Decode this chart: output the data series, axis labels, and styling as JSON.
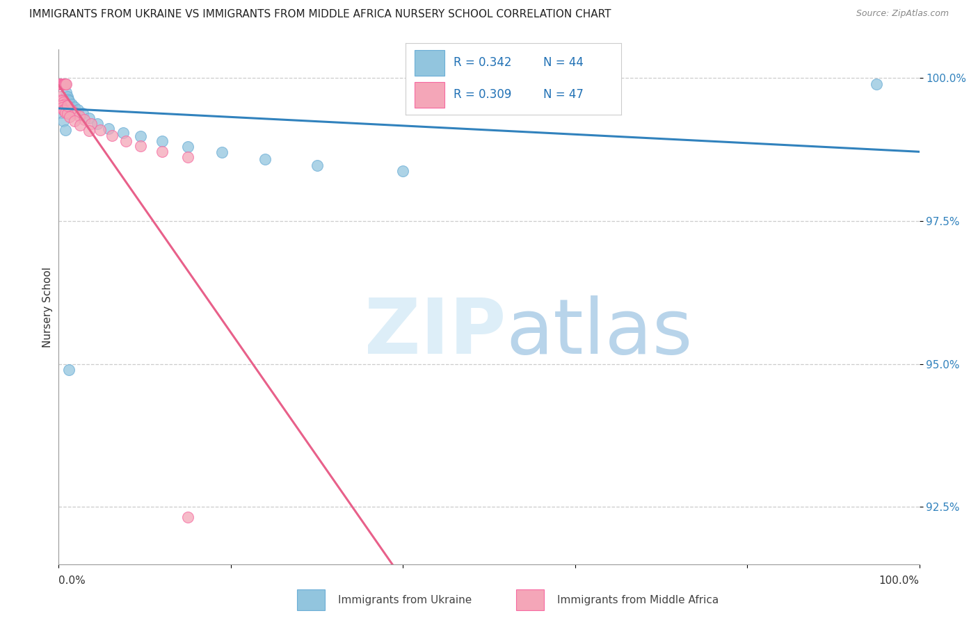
{
  "title": "IMMIGRANTS FROM UKRAINE VS IMMIGRANTS FROM MIDDLE AFRICA NURSERY SCHOOL CORRELATION CHART",
  "source": "Source: ZipAtlas.com",
  "ylabel": "Nursery School",
  "yticks": [
    0.925,
    0.95,
    0.975,
    1.0
  ],
  "ytick_labels": [
    "92.5%",
    "95.0%",
    "97.5%",
    "100.0%"
  ],
  "xlim": [
    0.0,
    1.0
  ],
  "ylim": [
    0.915,
    1.005
  ],
  "blue_color": "#92c5de",
  "blue_edge_color": "#6baed6",
  "blue_line_color": "#3182bd",
  "pink_color": "#f4a6b8",
  "pink_edge_color": "#f768a1",
  "pink_line_color": "#e8608a",
  "legend_R_blue": "R = 0.342",
  "legend_N_blue": "N = 44",
  "legend_R_pink": "R = 0.309",
  "legend_N_pink": "N = 47",
  "legend_label_blue": "Immigrants from Ukraine",
  "legend_label_pink": "Immigrants from Middle Africa",
  "title_fontsize": 11,
  "source_fontsize": 9,
  "tick_fontsize": 11,
  "blue_x": [
    0.001,
    0.002,
    0.002,
    0.002,
    0.003,
    0.003,
    0.003,
    0.003,
    0.004,
    0.004,
    0.004,
    0.005,
    0.005,
    0.005,
    0.006,
    0.006,
    0.006,
    0.007,
    0.007,
    0.008,
    0.009,
    0.01,
    0.011,
    0.012,
    0.015,
    0.018,
    0.022,
    0.028,
    0.035,
    0.045,
    0.058,
    0.075,
    0.095,
    0.12,
    0.15,
    0.19,
    0.24,
    0.3,
    0.4,
    0.95,
    0.003,
    0.005,
    0.008,
    0.012
  ],
  "blue_y": [
    0.999,
    0.999,
    0.999,
    0.999,
    0.999,
    0.999,
    0.999,
    0.999,
    0.999,
    0.999,
    0.999,
    0.999,
    0.999,
    0.999,
    0.999,
    0.999,
    0.999,
    0.999,
    0.999,
    0.999,
    0.9975,
    0.9968,
    0.9963,
    0.996,
    0.9955,
    0.995,
    0.9945,
    0.9938,
    0.993,
    0.992,
    0.9912,
    0.9905,
    0.9898,
    0.989,
    0.988,
    0.987,
    0.9858,
    0.9848,
    0.9838,
    0.999,
    0.994,
    0.9925,
    0.991,
    0.949
  ],
  "pink_x": [
    0.001,
    0.002,
    0.002,
    0.002,
    0.003,
    0.003,
    0.003,
    0.003,
    0.004,
    0.004,
    0.005,
    0.005,
    0.006,
    0.006,
    0.007,
    0.007,
    0.008,
    0.009,
    0.002,
    0.003,
    0.004,
    0.005,
    0.007,
    0.009,
    0.014,
    0.018,
    0.024,
    0.03,
    0.038,
    0.048,
    0.062,
    0.078,
    0.095,
    0.12,
    0.15,
    0.003,
    0.004,
    0.005,
    0.006,
    0.008,
    0.01,
    0.013,
    0.018,
    0.025,
    0.035,
    0.15,
    0.01
  ],
  "pink_y": [
    0.999,
    0.999,
    0.999,
    0.999,
    0.999,
    0.999,
    0.999,
    0.999,
    0.999,
    0.999,
    0.999,
    0.999,
    0.999,
    0.999,
    0.999,
    0.999,
    0.999,
    0.999,
    0.9968,
    0.9962,
    0.996,
    0.9958,
    0.9954,
    0.9952,
    0.9945,
    0.994,
    0.9934,
    0.9928,
    0.992,
    0.991,
    0.99,
    0.989,
    0.9882,
    0.9872,
    0.9862,
    0.9952,
    0.9948,
    0.9945,
    0.9943,
    0.994,
    0.9938,
    0.9932,
    0.9925,
    0.9918,
    0.9908,
    0.9232,
    0.9952
  ]
}
